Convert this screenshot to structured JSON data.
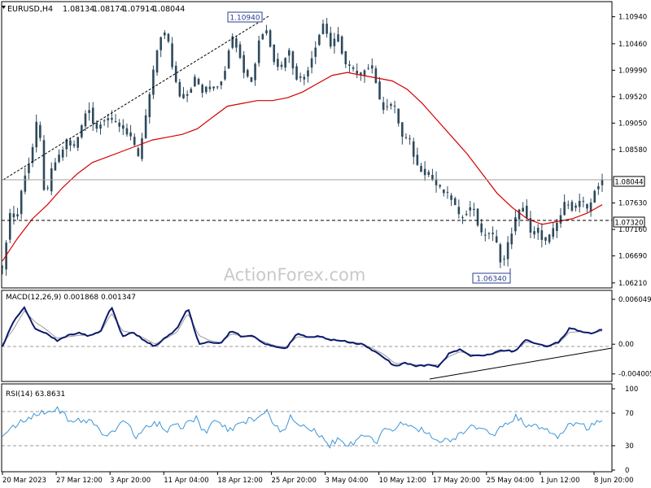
{
  "colors": {
    "price": "#2e4a5c",
    "ma": "#d40000",
    "macd": "#0d1a6e",
    "signal": "#9a9a9a",
    "rsi": "#3d95d6",
    "grid": "#777777",
    "bg": "#ffffff"
  },
  "watermark": "ActionForex.com",
  "chart_data": [
    {
      "type": "candlestick",
      "title": "EURUSD,H4",
      "ohlc_header": [
        "1.08134",
        "1.08174",
        "1.07914",
        "1.08044"
      ],
      "y_ticks": [
        "1.10940",
        "1.10460",
        "1.09990",
        "1.09520",
        "1.09050",
        "1.08580",
        "1.08044",
        "1.07630",
        "1.07320",
        "1.07160",
        "1.06690",
        "1.06210"
      ],
      "ylim": [
        1.0615,
        1.1118
      ],
      "current_price": "1.08044",
      "current_value": 1.08044,
      "support_label": "1.07320",
      "support_value": 1.0732,
      "annotations": [
        {
          "label": "1.10940",
          "value": 1.1094
        },
        {
          "label": "1.06340",
          "value": 1.0634
        }
      ],
      "x_labels": [
        "20 Mar 2023",
        "27 Mar 12:00",
        "3 Apr 20:00",
        "11 Apr 04:00",
        "18 Apr 12:00",
        "25 Apr 20:00",
        "3 May 04:00",
        "10 May 12:00",
        "17 May 20:00",
        "25 May 04:00",
        "1 Jun 12:00",
        "8 Jun 20:00"
      ],
      "close_key": [
        1.0645,
        1.0745,
        1.0735,
        1.081,
        1.0845,
        1.092,
        1.076,
        1.083,
        1.0845,
        1.0875,
        1.086,
        1.0895,
        1.094,
        1.089,
        1.0915,
        1.091,
        1.0905,
        1.0895,
        1.088,
        1.084,
        1.091,
        1.0985,
        1.106,
        1.1065,
        1.099,
        1.095,
        1.096,
        1.0985,
        1.096,
        1.097,
        1.097,
        1.099,
        1.106,
        1.104,
        1.099,
        1.098,
        1.106,
        1.107,
        1.102,
        1.1,
        1.104,
        1.099,
        1.098,
        1.101,
        1.105,
        1.1085,
        1.104,
        1.106,
        1.101,
        1.1,
        1.0985,
        1.101,
        1.1,
        1.093,
        1.094,
        1.093,
        1.088,
        1.0875,
        1.083,
        1.082,
        1.081,
        1.079,
        1.078,
        1.077,
        1.0735,
        1.075,
        1.0755,
        1.0705,
        1.0712,
        1.07,
        1.065,
        1.07,
        1.074,
        1.076,
        1.0705,
        1.0715,
        1.0692,
        1.071,
        1.0735,
        1.077,
        1.075,
        1.077,
        1.0745,
        1.079,
        1.08
      ],
      "ma_key": [
        1.066,
        1.07,
        1.0735,
        1.076,
        1.079,
        1.0815,
        1.0835,
        1.0845,
        1.0855,
        1.0865,
        1.0875,
        1.088,
        1.0885,
        1.0895,
        1.0915,
        1.0935,
        1.094,
        1.0945,
        1.0945,
        1.095,
        1.096,
        1.0975,
        1.099,
        1.0995,
        1.099,
        1.0985,
        1.098,
        1.0965,
        1.094,
        1.091,
        1.088,
        1.085,
        1.0815,
        1.078,
        1.0755,
        1.0735,
        1.0725,
        1.073,
        1.0735,
        1.0745,
        1.076
      ],
      "ma_x_key": [
        0,
        4,
        8,
        12,
        16,
        20,
        24,
        28,
        32,
        36,
        40,
        44,
        48,
        52,
        56,
        60,
        64,
        68,
        72,
        76,
        80,
        84,
        88,
        92,
        96,
        100,
        104,
        108,
        112,
        116,
        120,
        124,
        128,
        132,
        136,
        140,
        144,
        148,
        152,
        156,
        160
      ]
    },
    {
      "type": "line",
      "title": "MACD(12,26,9) 0.001868 0.001347",
      "y_ticks": [
        "0.006049",
        "0.00",
        "-0.004005"
      ],
      "ylim": [
        -0.0048,
        0.0066
      ],
      "macd_key": [
        -0.0003,
        0.003,
        0.005,
        0.002,
        0.0015,
        0.0005,
        0.0012,
        0.0015,
        0.0011,
        0.0018,
        0.005,
        0.001,
        0.0016,
        0.0005,
        -0.0003,
        0.001,
        0.002,
        0.005,
        0.0,
        0.0003,
        0.0001,
        0.0018,
        0.001,
        0.0012,
        0.0,
        -0.0004,
        -0.0006,
        0.0014,
        0.0009,
        0.0011,
        0.0006,
        0.0005,
        0.0002,
        0.0,
        -0.0009,
        -0.0018,
        -0.003,
        -0.0025,
        -0.003,
        -0.0028,
        -0.003,
        -0.0012,
        -0.0007,
        -0.0016,
        -0.0015,
        -0.0012,
        -0.0008,
        -0.001,
        0.0007,
        0.0,
        -0.0003,
        0.0003,
        0.0021,
        0.0018,
        0.0014,
        0.002
      ],
      "signal_key": [
        0.0,
        0.002,
        0.0045,
        0.003,
        0.002,
        0.0008,
        0.001,
        0.0012,
        0.0012,
        0.0016,
        0.0042,
        0.0018,
        0.0015,
        0.0008,
        0.0,
        0.0008,
        0.0016,
        0.0042,
        0.0012,
        0.0005,
        0.0002,
        0.0014,
        0.0011,
        0.001,
        0.0003,
        -0.0002,
        -0.0004,
        0.001,
        0.0009,
        0.001,
        0.0007,
        0.0005,
        0.0003,
        0.0001,
        -0.0006,
        -0.0014,
        -0.0026,
        -0.0026,
        -0.0028,
        -0.0028,
        -0.0028,
        -0.0016,
        -0.001,
        -0.0014,
        -0.0015,
        -0.0013,
        -0.0009,
        -0.0009,
        0.0003,
        0.0001,
        -0.0002,
        0.0001,
        0.0016,
        0.0017,
        0.0015,
        0.0018
      ]
    },
    {
      "type": "line",
      "title": "RSI(14) 63.8631",
      "y_ticks": [
        "100",
        "70",
        "30",
        "0"
      ],
      "ylim": [
        0,
        100
      ],
      "levels": [
        70,
        30
      ],
      "rsi_key": [
        45,
        52,
        58,
        60,
        67,
        72,
        72,
        78,
        66,
        56,
        62,
        61,
        55,
        40,
        44,
        58,
        60,
        38,
        50,
        55,
        58,
        48,
        55,
        52,
        60,
        64,
        44,
        60,
        56,
        50,
        54,
        60,
        63,
        66,
        72,
        55,
        48,
        65,
        56,
        53,
        48,
        40,
        30,
        38,
        30,
        33,
        45,
        40,
        35,
        52,
        48,
        55,
        58,
        52,
        48,
        44,
        38,
        35,
        40,
        46,
        55,
        50,
        48,
        40,
        54,
        60,
        66,
        56,
        56,
        52,
        48,
        40,
        46,
        58,
        55,
        52,
        57,
        64
      ]
    }
  ]
}
